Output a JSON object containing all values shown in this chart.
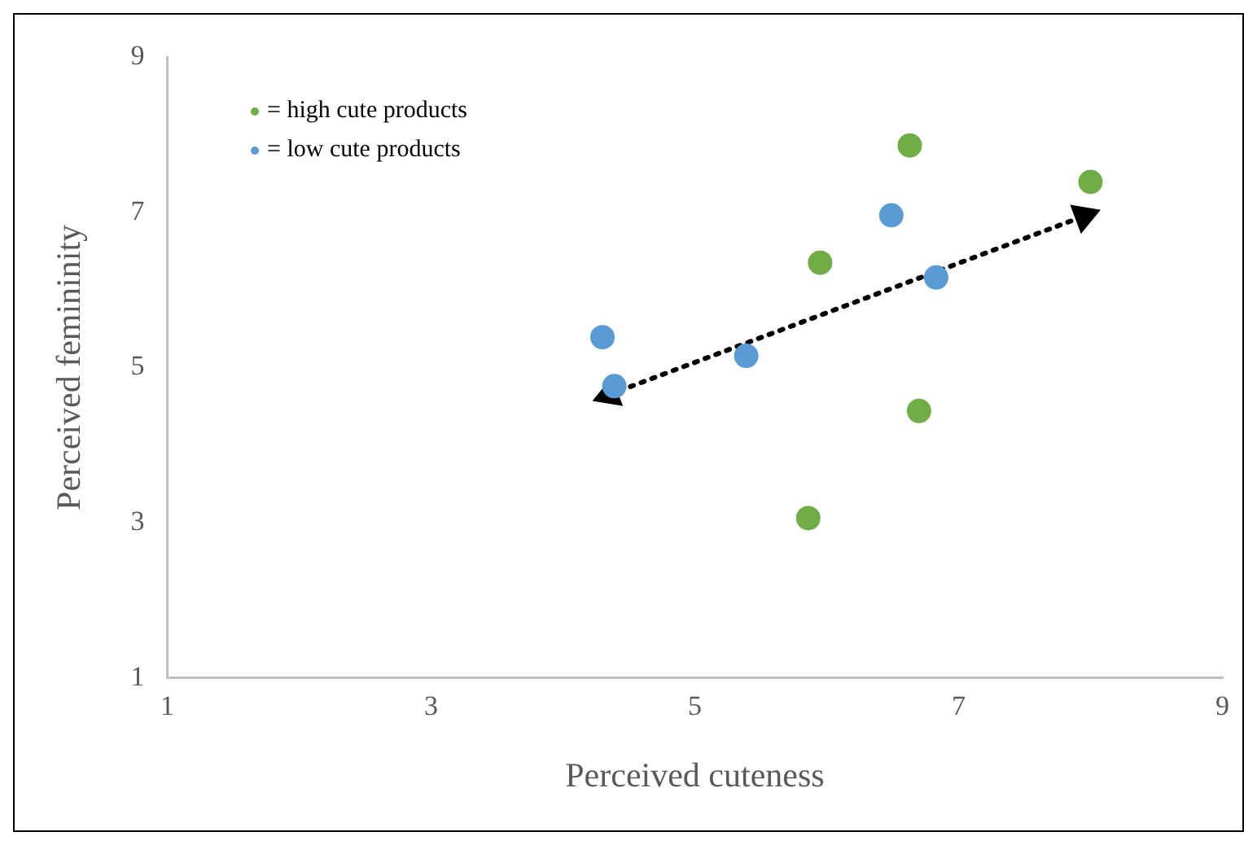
{
  "chart_data": {
    "type": "scatter",
    "xlabel": "Perceived cuteness",
    "ylabel": "Perceived femininity",
    "xlim": [
      1,
      9
    ],
    "xticks": [
      1,
      3,
      5,
      7,
      9
    ],
    "ylim": [
      1,
      9
    ],
    "yticks": [
      1,
      3,
      5,
      7,
      9
    ],
    "grid": false,
    "legend": "top left",
    "marker": "circle",
    "series": [
      {
        "name": "= high cute products",
        "color": "#70ad47",
        "x": [
          6.63,
          8.0,
          5.95,
          6.7,
          5.86
        ],
        "values": [
          7.86,
          7.39,
          6.35,
          4.44,
          3.06
        ]
      },
      {
        "name": "= low cute products",
        "color": "#5b9bd5",
        "x": [
          4.3,
          4.39,
          5.39,
          6.49,
          6.83
        ],
        "values": [
          5.39,
          4.76,
          5.15,
          6.96,
          6.16
        ]
      },
      {
        "type": "line",
        "color": "#000000",
        "line_style": "dotted",
        "marker": "triangle",
        "x": [
          4.35,
          7.95
        ],
        "values": [
          4.65,
          6.95
        ]
      }
    ]
  }
}
